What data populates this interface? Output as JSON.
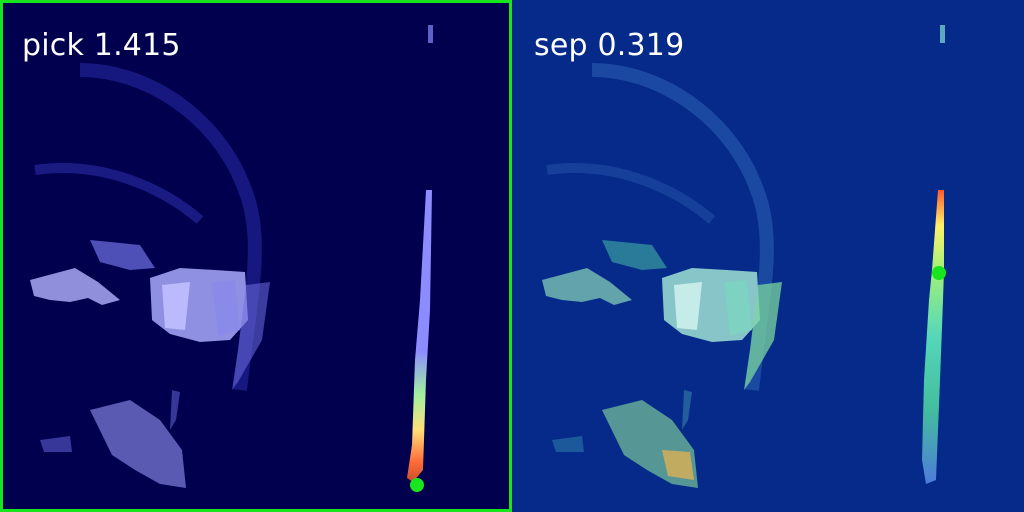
{
  "colors": {
    "left_background": "#00004f",
    "right_background": "#052a8a",
    "selection_border": "#18e51d",
    "marker": "#18e51d",
    "label_text": "#ffffff"
  },
  "panels": [
    {
      "id": "pick",
      "label": "pick 1.415",
      "selected": true,
      "marker": "green-dot"
    },
    {
      "id": "sep",
      "label": "sep 0.319",
      "selected": false,
      "marker": "green-dot"
    }
  ]
}
